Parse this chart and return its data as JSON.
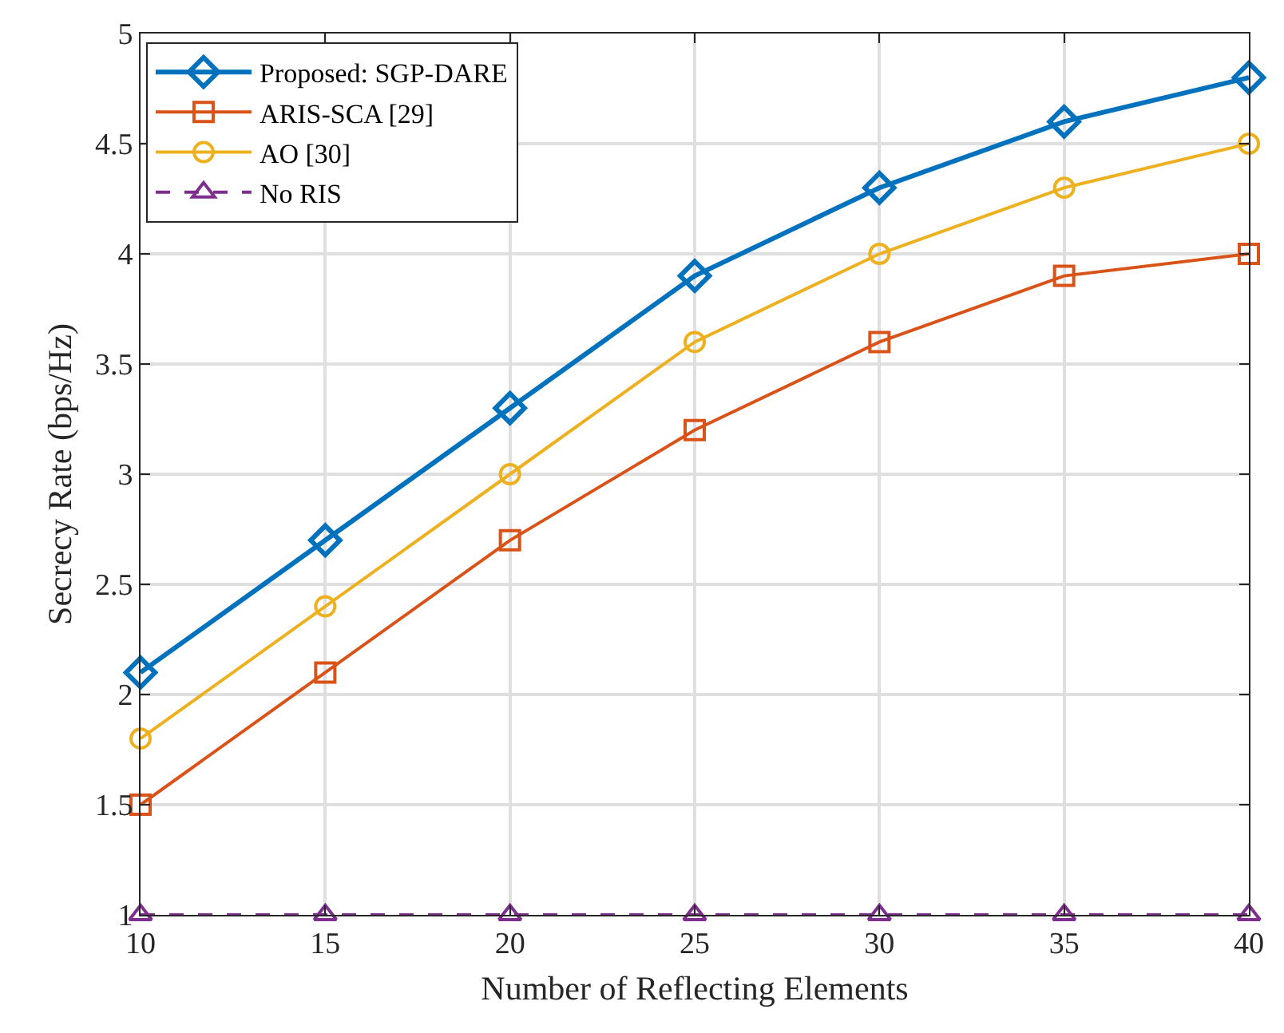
{
  "chart_data": {
    "type": "line",
    "xlabel": "Number of Reflecting Elements",
    "ylabel": "Secrecy Rate (bps/Hz)",
    "x": [
      10,
      15,
      20,
      25,
      30,
      35,
      40
    ],
    "series": [
      {
        "name": "Proposed: SGP-DARE",
        "color": "#0072bd",
        "marker": "diamond",
        "line_style": "solid",
        "values": [
          2.1,
          2.7,
          3.3,
          3.9,
          4.3,
          4.6,
          4.8
        ]
      },
      {
        "name": "ARIS-SCA [29]",
        "color": "#d95319",
        "marker": "square",
        "line_style": "solid",
        "values": [
          1.5,
          2.1,
          2.7,
          3.2,
          3.6,
          3.9,
          4.0
        ]
      },
      {
        "name": "AO [30]",
        "color": "#edb120",
        "marker": "circle",
        "line_style": "solid",
        "values": [
          1.8,
          2.4,
          3.0,
          3.6,
          4.0,
          4.3,
          4.5
        ]
      },
      {
        "name": "No RIS",
        "color": "#7e2f8e",
        "marker": "triangle",
        "line_style": "dashed",
        "values": [
          1,
          1,
          1,
          1,
          1,
          1,
          1
        ]
      }
    ],
    "xlim": [
      10,
      40
    ],
    "xticks": [
      10,
      15,
      20,
      25,
      30,
      35,
      40
    ],
    "ylim": [
      1,
      5
    ],
    "yticks": [
      1,
      1.5,
      2,
      2.5,
      3,
      3.5,
      4,
      4.5,
      5
    ],
    "grid": true,
    "legend": "top left"
  }
}
